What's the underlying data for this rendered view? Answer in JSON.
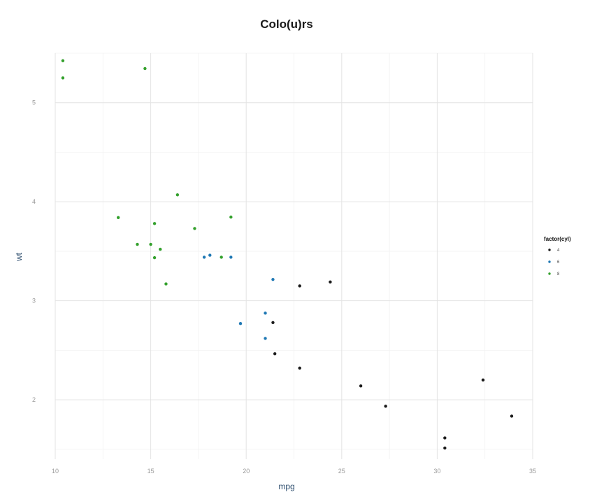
{
  "chart_data": {
    "type": "scatter",
    "title": "Colo(u)rs",
    "xlabel": "mpg",
    "ylabel": "wt",
    "xlim": [
      10,
      35
    ],
    "ylim": [
      1.4,
      5.5
    ],
    "xticks": [
      10,
      15,
      20,
      25,
      30,
      35
    ],
    "yticks": [
      2,
      3,
      4,
      5
    ],
    "grid": true,
    "legend": {
      "title": "factor(cyl)",
      "placement": "right"
    },
    "series": [
      {
        "name": "4",
        "color": "#1a1a1a",
        "points": [
          [
            22.8,
            2.32
          ],
          [
            24.4,
            3.19
          ],
          [
            22.8,
            3.15
          ],
          [
            32.4,
            2.2
          ],
          [
            30.4,
            1.615
          ],
          [
            33.9,
            1.835
          ],
          [
            21.5,
            2.465
          ],
          [
            27.3,
            1.935
          ],
          [
            26.0,
            2.14
          ],
          [
            30.4,
            1.513
          ],
          [
            21.4,
            2.78
          ]
        ]
      },
      {
        "name": "6",
        "color": "#1f78b4",
        "points": [
          [
            21.0,
            2.62
          ],
          [
            21.0,
            2.875
          ],
          [
            21.4,
            3.215
          ],
          [
            18.1,
            3.46
          ],
          [
            19.2,
            3.44
          ],
          [
            17.8,
            3.44
          ],
          [
            19.7,
            2.77
          ]
        ]
      },
      {
        "name": "8",
        "color": "#33a02c",
        "points": [
          [
            18.7,
            3.44
          ],
          [
            14.3,
            3.57
          ],
          [
            16.4,
            4.07
          ],
          [
            17.3,
            3.73
          ],
          [
            15.2,
            3.78
          ],
          [
            10.4,
            5.25
          ],
          [
            10.4,
            5.424
          ],
          [
            14.7,
            5.345
          ],
          [
            15.5,
            3.52
          ],
          [
            15.2,
            3.435
          ],
          [
            13.3,
            3.84
          ],
          [
            19.2,
            3.845
          ],
          [
            15.8,
            3.17
          ],
          [
            15.0,
            3.57
          ]
        ]
      }
    ]
  }
}
